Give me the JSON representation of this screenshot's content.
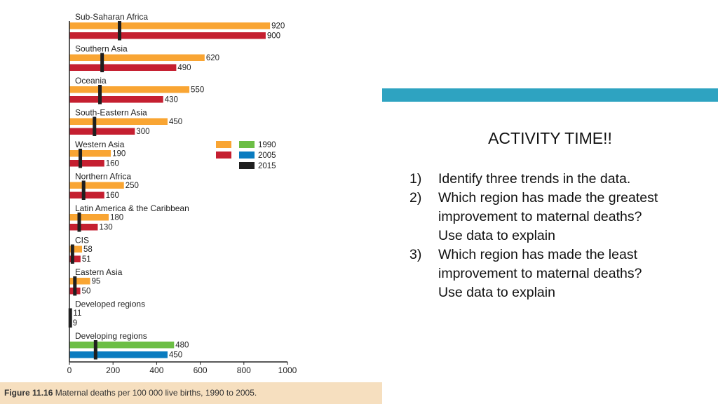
{
  "chart_data": {
    "type": "bar",
    "orientation": "horizontal",
    "xlim": [
      0,
      1000
    ],
    "x_ticks": [
      0,
      200,
      400,
      600,
      800,
      1000
    ],
    "grid": false,
    "legend_position": "right",
    "legend": [
      {
        "name": "1990",
        "color": "#6cbe45"
      },
      {
        "name": "2005",
        "color": "#0a7cc0"
      },
      {
        "name": "2015",
        "color": "#1f1f1f"
      }
    ],
    "legend_swatches": [
      "#f9a533",
      "#c51f30"
    ],
    "categories": [
      "Sub-Saharan Africa",
      "Southern Asia",
      "Oceania",
      "South-Eastern Asia",
      "Western Asia",
      "Northern Africa",
      "Latin America & the Caribbean",
      "CIS",
      "Eastern Asia",
      "Developed regions",
      "Developing regions"
    ],
    "series": [
      {
        "name": "1990",
        "values": [
          920,
          620,
          550,
          450,
          190,
          250,
          180,
          58,
          95,
          11,
          480
        ],
        "colors": [
          "#f9a533",
          "#f9a533",
          "#f9a533",
          "#f9a533",
          "#f9a533",
          "#f9a533",
          "#f9a533",
          "#f9a533",
          "#f9a533",
          "#6cbe45",
          "#6cbe45"
        ]
      },
      {
        "name": "2005",
        "values": [
          900,
          490,
          430,
          300,
          160,
          160,
          130,
          51,
          50,
          9,
          450
        ],
        "colors": [
          "#c51f30",
          "#c51f30",
          "#c51f30",
          "#c51f30",
          "#c51f30",
          "#c51f30",
          "#c51f30",
          "#c51f30",
          "#c51f30",
          "#0a7cc0",
          "#0a7cc0"
        ]
      },
      {
        "name": "2015",
        "marker": "target",
        "values": [
          230,
          150,
          140,
          115,
          50,
          65,
          45,
          14,
          25,
          4,
          120
        ]
      }
    ],
    "value_labels_1990": [
      "920",
      "620",
      "550",
      "450",
      "190",
      "250",
      "180",
      "58",
      "95",
      "11",
      "480"
    ],
    "value_labels_2005": [
      "900",
      "490",
      "430",
      "300",
      "160",
      "160",
      "130",
      "51",
      "50",
      "9",
      "450"
    ]
  },
  "caption": {
    "figure_label": "Figure 11.16",
    "text": " Maternal deaths per 100 000 live births, 1990 to 2005."
  },
  "activity": {
    "title": "ACTIVITY TIME!!",
    "items": [
      {
        "num": "1)",
        "text": "Identify three trends in the data."
      },
      {
        "num": "2)",
        "text": "Which region has made the greatest improvement to maternal deaths? Use data to explain"
      },
      {
        "num": "3)",
        "text": "Which region has made the least improvement to maternal deaths? Use data to explain"
      }
    ]
  },
  "colors": {
    "band": "#2ea3c1",
    "caption_bg": "#f6dfbf"
  }
}
